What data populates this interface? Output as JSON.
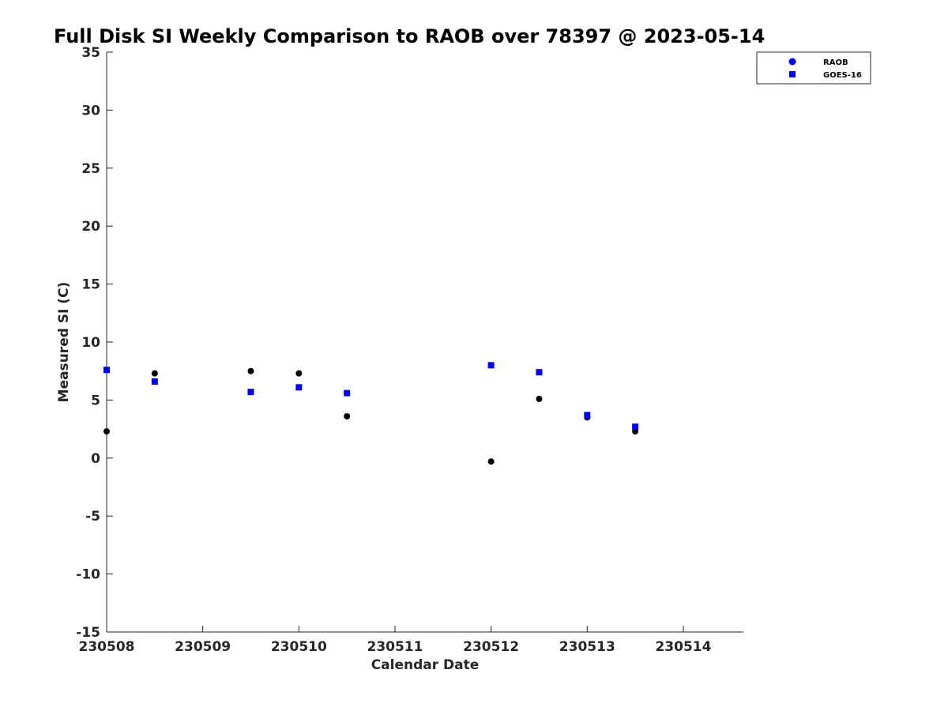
{
  "chart_data": {
    "type": "scatter",
    "title": "Full Disk SI Weekly Comparison to RAOB over 78397 @ 2023-05-14",
    "xlabel": "Calendar Date",
    "ylabel": "Measured SI (C)",
    "xlim": [
      "2023-05-08",
      "2023-05-14 15:00"
    ],
    "ylim": [
      -15,
      35
    ],
    "x_ticks": [
      "2023-05-08",
      "2023-05-09",
      "2023-05-10",
      "2023-05-11",
      "2023-05-12",
      "2023-05-13",
      "2023-05-14"
    ],
    "x_tick_labels": [
      "230508",
      "230509",
      "230510",
      "230511",
      "230512",
      "230513",
      "230514"
    ],
    "y_ticks": [
      -15,
      -10,
      -5,
      0,
      5,
      10,
      15,
      20,
      25,
      30,
      35
    ],
    "y_tick_labels": [
      "-15",
      "-10",
      "-5",
      "0",
      "5",
      "10",
      "15",
      "20",
      "25",
      "30",
      "35"
    ],
    "grid": false,
    "legend_position": "top-right",
    "series": [
      {
        "name": "RAOB",
        "marker": "circle",
        "color": "#000000",
        "legend_color": "#0000ff",
        "points": [
          {
            "x": "2023-05-08 00:00",
            "y": 2.3
          },
          {
            "x": "2023-05-08 12:00",
            "y": 7.3
          },
          {
            "x": "2023-05-09 12:00",
            "y": 7.5
          },
          {
            "x": "2023-05-10 00:00",
            "y": 7.3
          },
          {
            "x": "2023-05-10 12:00",
            "y": 3.6
          },
          {
            "x": "2023-05-12 00:00",
            "y": -0.3
          },
          {
            "x": "2023-05-12 12:00",
            "y": 5.1
          },
          {
            "x": "2023-05-13 00:00",
            "y": 3.5
          },
          {
            "x": "2023-05-13 12:00",
            "y": 2.3
          }
        ]
      },
      {
        "name": "GOES-16",
        "marker": "square",
        "color": "#0000ff",
        "legend_color": "#0000ff",
        "points": [
          {
            "x": "2023-05-08 00:00",
            "y": 7.6
          },
          {
            "x": "2023-05-08 12:00",
            "y": 6.6
          },
          {
            "x": "2023-05-09 12:00",
            "y": 5.7
          },
          {
            "x": "2023-05-10 00:00",
            "y": 6.1
          },
          {
            "x": "2023-05-10 12:00",
            "y": 5.6
          },
          {
            "x": "2023-05-12 00:00",
            "y": 8.0
          },
          {
            "x": "2023-05-12 12:00",
            "y": 7.4
          },
          {
            "x": "2023-05-13 00:00",
            "y": 3.7
          },
          {
            "x": "2023-05-13 12:00",
            "y": 2.7
          }
        ]
      }
    ]
  }
}
